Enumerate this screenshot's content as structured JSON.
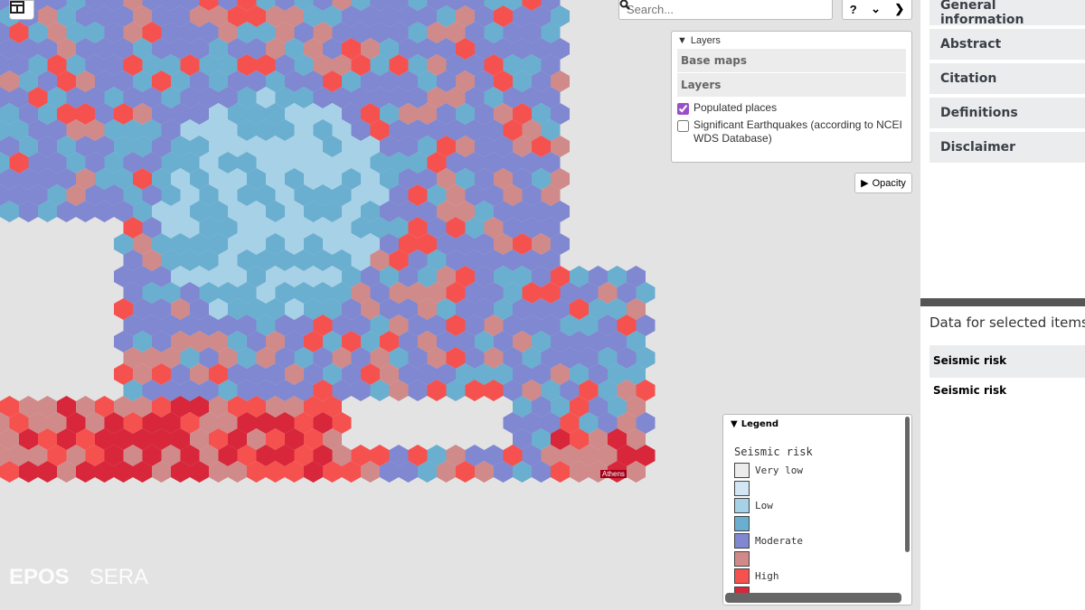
{
  "map": {
    "search_placeholder": "Search...",
    "nav": {
      "help": "?",
      "down": "⌄",
      "next": "›"
    },
    "layers": {
      "header": "Layers",
      "groups": [
        "Base maps",
        "Layers"
      ],
      "items": [
        {
          "label": "Populated places",
          "checked": true
        },
        {
          "label": "Significant Earthquakes (according to NCEI WDS Database)",
          "checked": false
        }
      ]
    },
    "opacity_label": "Opacity",
    "legend": {
      "header": "Legend",
      "title": "Seismic risk",
      "items": [
        {
          "label": "Very low",
          "color": "#ececec"
        },
        {
          "label": "",
          "color": "#d3e6f3"
        },
        {
          "label": "Low",
          "color": "#a6d1e6"
        },
        {
          "label": "",
          "color": "#6aaed0"
        },
        {
          "label": "Moderate",
          "color": "#7f88d0"
        },
        {
          "label": "",
          "color": "#d08a8a"
        },
        {
          "label": "High",
          "color": "#f5524f"
        },
        {
          "label": "",
          "color": "#d8263a"
        }
      ]
    },
    "place_label": "Athens",
    "logos": [
      "EPOS",
      "SERA"
    ]
  },
  "sidebar": {
    "tabs": [
      "General information",
      "Abstract",
      "Citation",
      "Definitions",
      "Disclaimer"
    ],
    "data_title": "Data for selected items",
    "selected_header": "Seismic risk",
    "selected_value": "Seismic risk"
  }
}
